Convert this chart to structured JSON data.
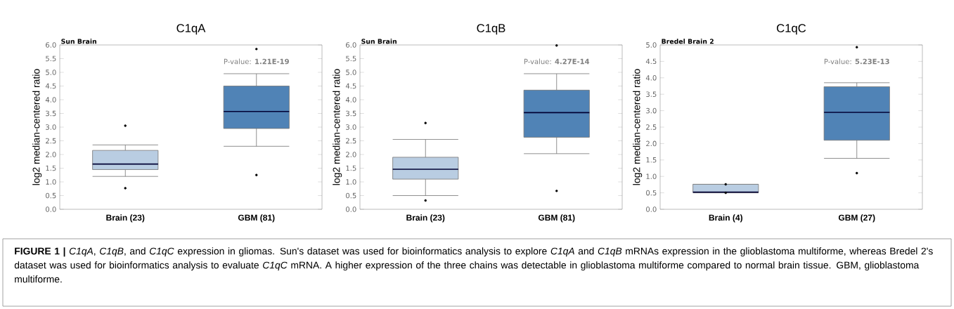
{
  "chart_data": [
    {
      "type": "box",
      "title": "C1qA",
      "subtitle": "Sun Brain",
      "ylabel": "log2 median-centered ratio",
      "categories": [
        "Brain (23)",
        "GBM (81)"
      ],
      "colors": [
        "#b9cde2",
        "#5083b6"
      ],
      "boxes": [
        {
          "low": 1.2,
          "q1": 1.45,
          "median": 1.65,
          "q3": 2.15,
          "high": 2.35,
          "outliers": [
            3.05,
            0.77
          ]
        },
        {
          "low": 2.3,
          "q1": 2.95,
          "median": 3.57,
          "q3": 4.5,
          "high": 4.95,
          "outliers": [
            5.85,
            1.25
          ]
        }
      ],
      "ylim": [
        0,
        6
      ],
      "yticks": [
        {
          "value": 0,
          "label": "0.0"
        },
        {
          "value": 0.5,
          "label": "0.5"
        },
        {
          "value": 1,
          "label": "1.0"
        },
        {
          "value": 1.5,
          "label": "1.5"
        },
        {
          "value": 2,
          "label": "2.0"
        },
        {
          "value": 2.5,
          "label": "2.5"
        },
        {
          "value": 3,
          "label": "3.0"
        },
        {
          "value": 3.5,
          "label": "3.5"
        },
        {
          "value": 4,
          "label": "4.0"
        },
        {
          "value": 4.5,
          "label": "4.5"
        },
        {
          "value": 5,
          "label": "5.0"
        },
        {
          "value": 5.5,
          "label": "5.5"
        },
        {
          "value": 6,
          "label": "6.0"
        }
      ],
      "annotations": [
        "P-value: **1.21E-19**",
        "**FIGURE 1 |** *C1qA*, *C1qB*, and *C1qC* expression in gliomas. Sun's dataset was used for bioinformatics analysis to explore *C1qA* and *C1qB* mRNAs expression in the glioblastoma multiforme, whereas Bredel 2's dataset was used for bioinformatics analysis to evaluate *C1qC* mRNA. A higher expression of the three chains was detectable in glioblastoma multiforme compared to normal brain tissue. GBM, glioblastoma multiforme."
      ]
    },
    {
      "type": "box",
      "title": "C1qB",
      "subtitle": "Sun Brain",
      "ylabel": "log2 median-centered ratio",
      "categories": [
        "Brain (23)",
        "GBM (81)"
      ],
      "colors": [
        "#b9cde2",
        "#5083b6"
      ],
      "boxes": [
        {
          "low": 0.5,
          "q1": 1.1,
          "median": 1.46,
          "q3": 1.9,
          "high": 2.55,
          "outliers": [
            3.15,
            0.32
          ]
        },
        {
          "low": 2.03,
          "q1": 2.63,
          "median": 3.53,
          "q3": 4.35,
          "high": 4.95,
          "outliers": [
            5.98,
            0.67
          ]
        }
      ],
      "ylim": [
        0,
        6
      ],
      "yticks": [
        {
          "value": 0,
          "label": "0.0"
        },
        {
          "value": 0.5,
          "label": "0.5"
        },
        {
          "value": 1,
          "label": "1.0"
        },
        {
          "value": 1.5,
          "label": "1.5"
        },
        {
          "value": 2,
          "label": "2.0"
        },
        {
          "value": 2.5,
          "label": "2.5"
        },
        {
          "value": 3,
          "label": "3.0"
        },
        {
          "value": 3.5,
          "label": "3.5"
        },
        {
          "value": 4,
          "label": "4.0"
        },
        {
          "value": 4.5,
          "label": "4.5"
        },
        {
          "value": 5,
          "label": "5.0"
        },
        {
          "value": 5.5,
          "label": "5.5"
        },
        {
          "value": 6,
          "label": "6.0"
        }
      ],
      "annotations": [
        "P-value: **4.27E-14**"
      ]
    },
    {
      "type": "box",
      "title": "C1qC",
      "subtitle": "Bredel Brain 2",
      "ylabel": "log2 median-centered ratio",
      "categories": [
        "Brain (4)",
        "GBM (27)"
      ],
      "colors": [
        "#b9cde2",
        "#5083b6"
      ],
      "boxes": [
        {
          "low": 0.5,
          "q1": 0.52,
          "median": 0.52,
          "q3": 0.76,
          "high": 0.76,
          "outliers": [
            0.76,
            0.5
          ]
        },
        {
          "low": 1.55,
          "q1": 2.1,
          "median": 2.95,
          "q3": 3.73,
          "high": 3.85,
          "outliers": [
            4.93,
            1.1
          ]
        }
      ],
      "ylim": [
        0,
        5
      ],
      "yticks": [
        {
          "value": 0,
          "label": "0.0"
        },
        {
          "value": 0.5,
          "label": "0.5"
        },
        {
          "value": 1,
          "label": "1.0"
        },
        {
          "value": 1.5,
          "label": "1.5"
        },
        {
          "value": 2,
          "label": "2.0"
        },
        {
          "value": 2.5,
          "label": "2.5"
        },
        {
          "value": 3,
          "label": "3.0"
        },
        {
          "value": 3.5,
          "label": "3.5"
        },
        {
          "value": 4,
          "label": "4.0"
        },
        {
          "value": 4.5,
          "label": "4.5"
        },
        {
          "value": 5,
          "label": "5.0"
        }
      ],
      "annotations": [
        "P-value: **5.23E-13**"
      ]
    }
  ]
}
